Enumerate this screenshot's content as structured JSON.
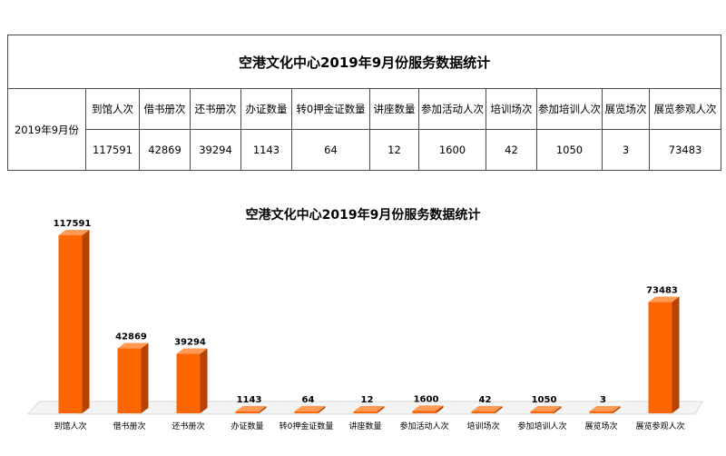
{
  "table": {
    "title": "空港文化中心2019年9月份服务数据统计",
    "period": "2019年9月份",
    "headers": [
      "到馆人次",
      "借书册次",
      "还书册次",
      "办证数量",
      "转0押金证数量",
      "讲座数量",
      "参加活动人次",
      "培训场次",
      "参加培训人次",
      "展览场次",
      "展览参观人次"
    ],
    "values": [
      "117591",
      "42869",
      "39294",
      "1143",
      "64",
      "12",
      "1600",
      "42",
      "1050",
      "3",
      "73483"
    ]
  },
  "chart_data": {
    "type": "bar",
    "title": "空港文化中心2019年9月份服务数据统计",
    "categories": [
      "到馆人次",
      "借书册次",
      "还书册次",
      "办证数量",
      "转0押金证数量",
      "讲座数量",
      "参加活动人次",
      "培训场次",
      "参加培训人次",
      "展览场次",
      "展览参观人次"
    ],
    "values": [
      117591,
      42869,
      39294,
      1143,
      64,
      12,
      1600,
      42,
      1050,
      3,
      73483
    ],
    "ylim": [
      0,
      120000
    ],
    "grid": false,
    "legend": "none",
    "colors": {
      "front": "#ff6600",
      "side": "#b84300",
      "top": "#ff9a55",
      "floor": "#d9d9d9"
    }
  }
}
